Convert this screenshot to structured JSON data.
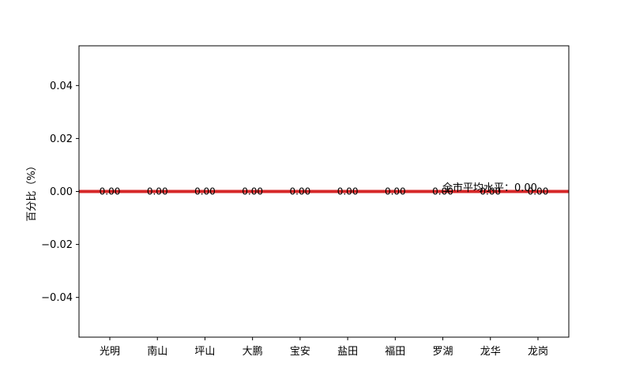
{
  "chart_data": {
    "type": "bar",
    "title": "",
    "xlabel": "",
    "ylabel": "百分比（%）",
    "categories": [
      "光明",
      "南山",
      "坪山",
      "大鹏",
      "宝安",
      "盐田",
      "福田",
      "罗湖",
      "龙华",
      "龙岗"
    ],
    "values": [
      0.0,
      0.0,
      0.0,
      0.0,
      0.0,
      0.0,
      0.0,
      0.0,
      0.0,
      0.0
    ],
    "value_labels": [
      "0.00",
      "0.00",
      "0.00",
      "0.00",
      "0.00",
      "0.00",
      "0.00",
      "0.00",
      "0.00",
      "0.00"
    ],
    "ylim": [
      -0.055,
      0.055
    ],
    "yticks": [
      -0.04,
      -0.02,
      0.0,
      0.02,
      0.04
    ],
    "ytick_labels": [
      "−0.04",
      "−0.02",
      "0.00",
      "0.02",
      "0.04"
    ],
    "grid": false,
    "average_line": {
      "value": 0.0,
      "label": "全市平均水平：0.00",
      "color": "#d62728"
    }
  }
}
